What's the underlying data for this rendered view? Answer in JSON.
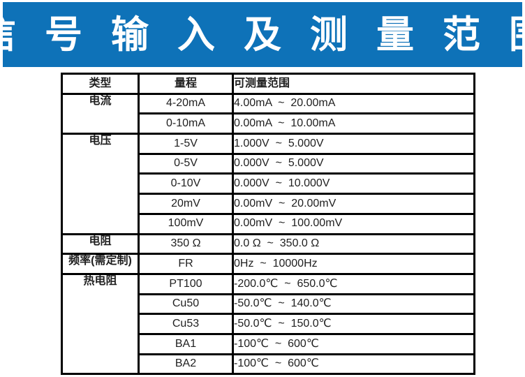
{
  "banner": {
    "title": "信 号 输 入 及 测 量 范 围",
    "bg_color": "#0E72B8",
    "text_color": "#FFFFFF"
  },
  "table": {
    "headers": [
      "类型",
      "量程",
      "可测量范围"
    ],
    "groups": [
      {
        "type": "电流",
        "rows": [
          {
            "range": "4-20mA",
            "measurable": "4.00mA  ~  20.00mA"
          },
          {
            "range": "0-10mA",
            "measurable": "0.00mA  ~  10.00mA"
          }
        ]
      },
      {
        "type": "电压",
        "rows": [
          {
            "range": "1-5V",
            "measurable": "1.000V  ~  5.000V"
          },
          {
            "range": "0-5V",
            "measurable": "0.000V  ~  5.000V"
          },
          {
            "range": "0-10V",
            "measurable": "0.000V  ~  10.000V"
          },
          {
            "range": "20mV",
            "measurable": "0.00mV  ~  20.00mV"
          },
          {
            "range": "100mV",
            "measurable": "0.00mV  ~  100.00mV"
          }
        ]
      },
      {
        "type": "电阻",
        "rows": [
          {
            "range": "350 Ω",
            "measurable": "0.0 Ω  ~  350.0 Ω"
          }
        ]
      },
      {
        "type": "频率(需定制)",
        "rows": [
          {
            "range": "FR",
            "measurable": "0Hz  ~  10000Hz"
          }
        ]
      },
      {
        "type": "热电阻",
        "rows": [
          {
            "range": "PT100",
            "measurable": "-200.0℃  ~  650.0℃"
          },
          {
            "range": "Cu50",
            "measurable": "-50.0℃  ~  140.0℃"
          },
          {
            "range": "Cu53",
            "measurable": "-50.0℃  ~  150.0℃"
          },
          {
            "range": "BA1",
            "measurable": "-100℃  ~  600℃"
          },
          {
            "range": "BA2",
            "measurable": "-100℃  ~  600℃"
          }
        ]
      }
    ]
  }
}
